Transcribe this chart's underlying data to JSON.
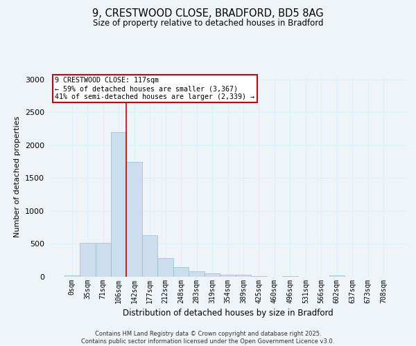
{
  "title_line1": "9, CRESTWOOD CLOSE, BRADFORD, BD5 8AG",
  "title_line2": "Size of property relative to detached houses in Bradford",
  "xlabel": "Distribution of detached houses by size in Bradford",
  "ylabel": "Number of detached properties",
  "bin_labels": [
    "0sqm",
    "35sqm",
    "71sqm",
    "106sqm",
    "142sqm",
    "177sqm",
    "212sqm",
    "248sqm",
    "283sqm",
    "319sqm",
    "354sqm",
    "389sqm",
    "425sqm",
    "460sqm",
    "496sqm",
    "531sqm",
    "566sqm",
    "602sqm",
    "637sqm",
    "673sqm",
    "708sqm"
  ],
  "bar_values": [
    20,
    520,
    520,
    2200,
    1750,
    630,
    280,
    150,
    80,
    50,
    35,
    30,
    15,
    5,
    15,
    5,
    2,
    20,
    2,
    2,
    2
  ],
  "bar_color": "#ccdded",
  "bar_edge_color": "#99bbcc",
  "grid_color": "#ddeeff",
  "red_line_x": 3.5,
  "annotation_line1": "9 CRESTWOOD CLOSE: 117sqm",
  "annotation_line2": "← 59% of detached houses are smaller (3,367)",
  "annotation_line3": "41% of semi-detached houses are larger (2,339) →",
  "annotation_box_color": "#ffffff",
  "annotation_border_color": "#cc0000",
  "ylim_max": 3050,
  "yticks": [
    0,
    500,
    1000,
    1500,
    2000,
    2500,
    3000
  ],
  "footer_line1": "Contains HM Land Registry data © Crown copyright and database right 2025.",
  "footer_line2": "Contains public sector information licensed under the Open Government Licence v3.0.",
  "bg_color": "#eef4f8"
}
